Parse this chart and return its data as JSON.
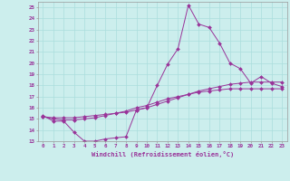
{
  "xlabel": "Windchill (Refroidissement éolien,°C)",
  "background_color": "#cceeed",
  "grid_color": "#aadddd",
  "line_color": "#993399",
  "xlim": [
    -0.5,
    23.5
  ],
  "ylim": [
    13,
    25.5
  ],
  "xticks": [
    0,
    1,
    2,
    3,
    4,
    5,
    6,
    7,
    8,
    9,
    10,
    11,
    12,
    13,
    14,
    15,
    16,
    17,
    18,
    19,
    20,
    21,
    22,
    23
  ],
  "yticks": [
    13,
    14,
    15,
    16,
    17,
    18,
    19,
    20,
    21,
    22,
    23,
    24,
    25
  ],
  "x": [
    0,
    1,
    2,
    3,
    4,
    5,
    6,
    7,
    8,
    9,
    10,
    11,
    12,
    13,
    14,
    15,
    16,
    17,
    18,
    19,
    20,
    21,
    22,
    23
  ],
  "y_line1": [
    15.3,
    14.8,
    14.8,
    13.8,
    13.0,
    13.0,
    13.2,
    13.3,
    13.4,
    15.8,
    16.0,
    18.0,
    19.9,
    21.3,
    25.2,
    23.5,
    23.2,
    21.8,
    20.0,
    19.5,
    18.2,
    18.8,
    18.2,
    17.9
  ],
  "y_line2": [
    15.2,
    15.1,
    15.1,
    15.1,
    15.2,
    15.3,
    15.4,
    15.5,
    15.6,
    15.8,
    16.0,
    16.3,
    16.6,
    16.9,
    17.2,
    17.5,
    17.7,
    17.9,
    18.1,
    18.2,
    18.3,
    18.3,
    18.3,
    18.3
  ],
  "y_line3": [
    15.2,
    15.0,
    14.9,
    14.9,
    15.0,
    15.1,
    15.3,
    15.5,
    15.7,
    16.0,
    16.2,
    16.5,
    16.8,
    17.0,
    17.2,
    17.4,
    17.5,
    17.6,
    17.7,
    17.7,
    17.7,
    17.7,
    17.7,
    17.7
  ],
  "tick_fontsize": 4.2,
  "xlabel_fontsize": 5.0,
  "marker_size": 2.0,
  "line_width": 0.7
}
